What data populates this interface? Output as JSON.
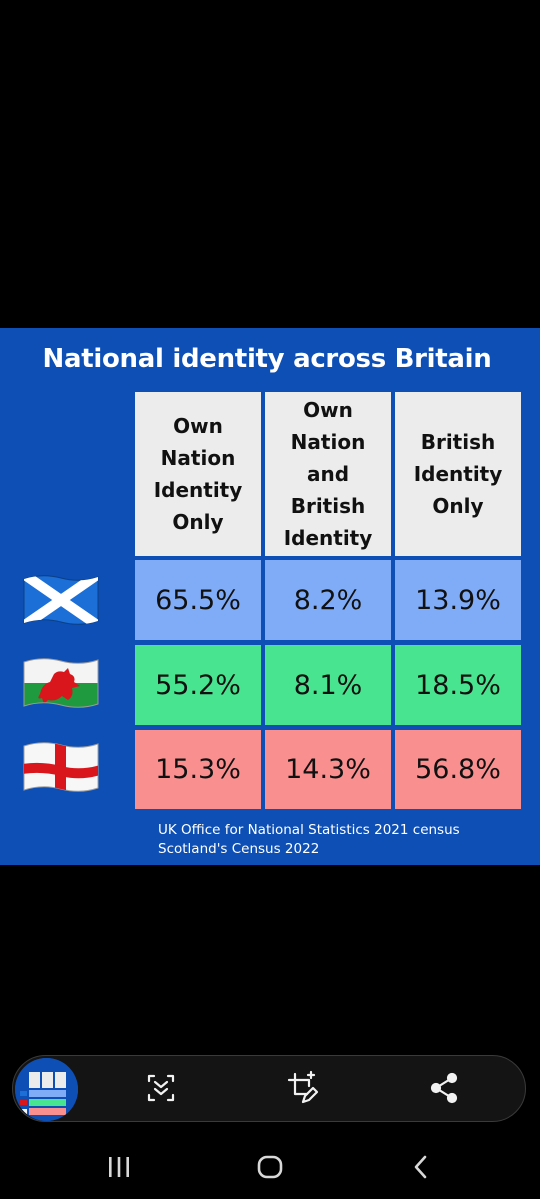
{
  "chart_data": {
    "type": "table",
    "title": "National identity across Britain",
    "columns": [
      "Own\nNation\nIdentity\nOnly",
      "Own\nNation\nand\nBritish\nIdentity",
      "British\nIdentity\nOnly"
    ],
    "rows": [
      {
        "flag": "scotland-flag-icon",
        "color": "#80acf7",
        "values": [
          "65.5%",
          "8.2%",
          "13.9%"
        ]
      },
      {
        "flag": "wales-flag-icon",
        "color": "#49e48f",
        "values": [
          "55.2%",
          "8.1%",
          "18.5%"
        ]
      },
      {
        "flag": "england-flag-icon",
        "color": "#f98f8f",
        "values": [
          "15.3%",
          "14.3%",
          "56.8%"
        ]
      }
    ],
    "sources": [
      "UK Office for National Statistics 2021 census",
      "Scotland's Census 2022"
    ]
  },
  "colors": {
    "card_background": "#0d4fb5",
    "header_cell": "#ececec",
    "scotland_row": "#80acf7",
    "wales_row": "#49e48f",
    "england_row": "#f98f8f"
  },
  "action_bar": {
    "thumbnail": "image-thumbnail",
    "icons": [
      "scroll-capture-icon",
      "crop-edit-icon",
      "share-icon"
    ]
  },
  "nav_bar": {
    "icons": [
      "recent-apps-icon",
      "home-icon",
      "back-icon"
    ]
  }
}
